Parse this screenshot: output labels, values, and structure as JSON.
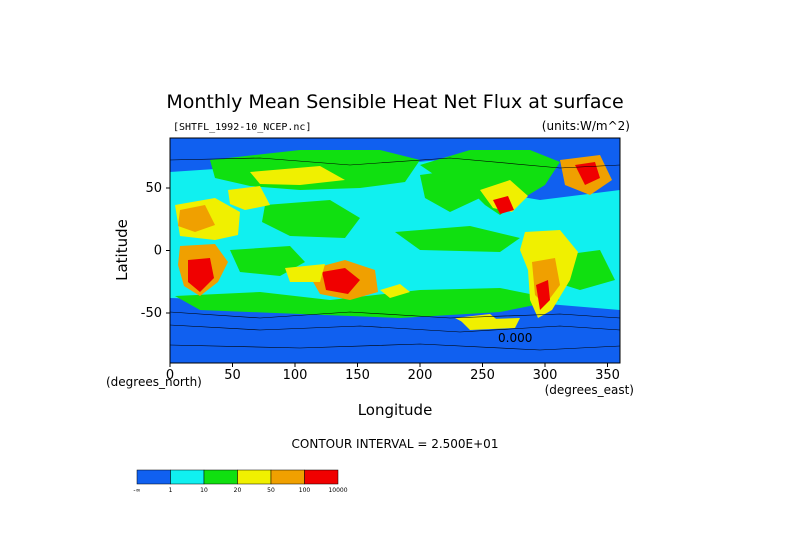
{
  "chart_data": {
    "type": "heatmap",
    "title": "Monthly Mean Sensible Heat Net Flux at surface",
    "file_label": "[SHTFL_1992-10_NCEP.nc]",
    "units_label": "(units:W/m^2)",
    "xlabel": "Longitude",
    "ylabel": "Latitude",
    "x_unit_left": "(degrees_north)",
    "x_unit_right": "(degrees_east)",
    "xlim": [
      0,
      360
    ],
    "ylim": [
      -90,
      90
    ],
    "x_ticks": [
      0,
      50,
      100,
      150,
      200,
      250,
      300,
      350
    ],
    "y_ticks": [
      50,
      0,
      -50
    ],
    "contour_interval": "CONTOUR INTERVAL = 2.500E+01",
    "contour_label": "0.000",
    "legend": {
      "boundaries": [
        "-∞",
        "1",
        "10",
        "20",
        "50",
        "100",
        "10000"
      ],
      "colors": [
        "#1060f0",
        "#10f0f0",
        "#10e010",
        "#f0f000",
        "#f0a000",
        "#f00000"
      ]
    }
  }
}
